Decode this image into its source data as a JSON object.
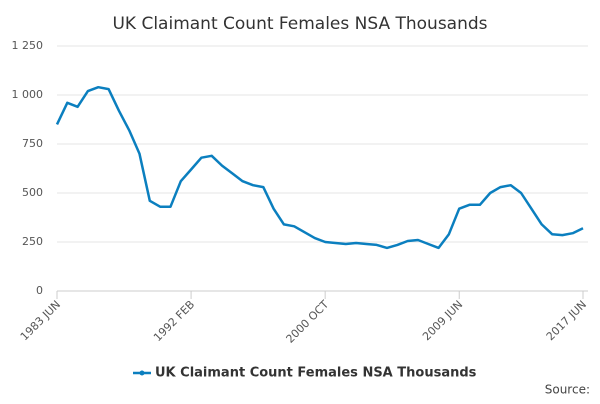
{
  "chart_data": {
    "type": "line",
    "title": "UK Claimant Count Females NSA Thousands",
    "categories": [
      "1983 JUN",
      null,
      null,
      null,
      null,
      null,
      null,
      null,
      null,
      null,
      null,
      null,
      null,
      "1992 FEB",
      null,
      null,
      null,
      null,
      null,
      null,
      null,
      null,
      null,
      null,
      null,
      null,
      "2000 OCT",
      null,
      null,
      null,
      null,
      null,
      null,
      null,
      null,
      null,
      null,
      null,
      null,
      "2009 JUN",
      null,
      null,
      null,
      null,
      null,
      null,
      null,
      null,
      null,
      null,
      null,
      "2017 JUN"
    ],
    "series": [
      {
        "name": "UK Claimant Count Females NSA Thousands",
        "color": "#0b7fbf",
        "values": [
          850,
          960,
          940,
          1020,
          1040,
          1030,
          920,
          820,
          700,
          460,
          430,
          430,
          560,
          620,
          680,
          690,
          640,
          600,
          560,
          540,
          530,
          420,
          340,
          330,
          300,
          270,
          250,
          245,
          240,
          245,
          240,
          235,
          220,
          235,
          255,
          260,
          240,
          220,
          290,
          420,
          440,
          440,
          500,
          530,
          540,
          500,
          420,
          340,
          290,
          285,
          295,
          320
        ]
      }
    ],
    "ylim": [
      0,
      1250
    ],
    "yticks": [
      0,
      250,
      500,
      750,
      {
        "value": 1000,
        "label": "1 000"
      },
      {
        "value": 1250,
        "label": "1 250"
      }
    ],
    "grid": true,
    "source": "Source:"
  }
}
